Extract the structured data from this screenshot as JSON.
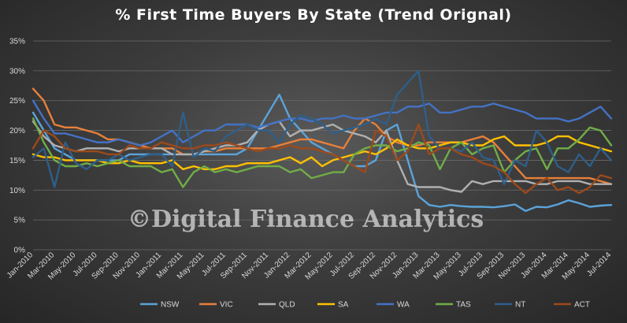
{
  "chart_data": {
    "type": "line",
    "title": "% First Time Buyers By State (Trend Orignal)",
    "watermark": "©Digital Finance Analytics",
    "y_axis": {
      "min": 0,
      "max": 35,
      "step": 5,
      "format": "percent"
    },
    "grid": true,
    "legend_position": "bottom",
    "x": [
      "Jan-2010",
      "Feb-2010",
      "Mar-2010",
      "Apr-2010",
      "May-2010",
      "Jun-2010",
      "Jul-2010",
      "Aug-2010",
      "Sep-2010",
      "Oct-2010",
      "Nov-2010",
      "Dec-2010",
      "Jan-2011",
      "Feb-2011",
      "Mar-2011",
      "Apr-2011",
      "May-2011",
      "Jun-2011",
      "Jul-2011",
      "Aug-2011",
      "Sep-2011",
      "Oct-2011",
      "Nov-2011",
      "Dec-2011",
      "Jan-2012",
      "Feb-2012",
      "Mar-2012",
      "Apr-2012",
      "May-2012",
      "Jun-2012",
      "Jul-2012",
      "Aug-2012",
      "Sep-2012",
      "Oct-2012",
      "Nov-2012",
      "Dec-2012",
      "Jan-2013",
      "Feb-2013",
      "Mar-2013",
      "Apr-2013",
      "May-2013",
      "Jun-2013",
      "Jul-2013",
      "Aug-2013",
      "Sep-2013",
      "Oct-2013",
      "Nov-2013",
      "Dec-2013",
      "Jan-2014",
      "Feb-2014",
      "Mar-2014",
      "Apr-2014",
      "May-2014",
      "Jun-2014",
      "Jul-2014"
    ],
    "x_tick_labels": [
      "Jan-2010",
      "Mar-2010",
      "May-2010",
      "Jul-2010",
      "Sep-2010",
      "Nov-2010",
      "Jan-2011",
      "Mar-2011",
      "May-2011",
      "Jul-2011",
      "Sep-2011",
      "Nov-2011",
      "Jan-2012",
      "Mar-2012",
      "May-2012",
      "Jul-2012",
      "Sep-2012",
      "Nov-2012",
      "Jan-2013",
      "Mar-2013",
      "May-2013",
      "Jul-2013",
      "Sep-2013",
      "Nov-2013",
      "Jan-2014",
      "Mar-2014",
      "May-2014",
      "Jul-2014"
    ],
    "series": [
      {
        "name": "NSW",
        "color": "#5ba3d9",
        "values": [
          23,
          20,
          17,
          16,
          15,
          15,
          15,
          15,
          15,
          16,
          16,
          16,
          16,
          16,
          16,
          16,
          16,
          16,
          16,
          16,
          17,
          20,
          23,
          26,
          22,
          20,
          18,
          17,
          16,
          15,
          14,
          14,
          15,
          20,
          21,
          15,
          9,
          7.5,
          7.2,
          7.5,
          7.3,
          7.2,
          7.2,
          7.1,
          7.3,
          7.6,
          6.5,
          7.2,
          7.1,
          7.6,
          8.3,
          7.8,
          7.2,
          7.4,
          7.5
        ]
      },
      {
        "name": "VIC",
        "color": "#e8803a",
        "values": [
          27,
          25,
          21,
          20.5,
          20.5,
          20,
          19.5,
          18.5,
          18.5,
          18,
          17.5,
          17,
          17,
          17,
          16,
          16,
          16.5,
          16.5,
          17,
          17,
          17,
          17,
          17,
          17.5,
          18,
          18.5,
          18.5,
          18,
          17.5,
          17,
          20,
          22,
          21,
          19,
          18,
          17.5,
          17.5,
          18,
          18,
          18,
          18,
          18.5,
          19,
          18,
          16,
          14,
          12,
          12,
          12,
          12,
          12,
          12,
          12,
          11.5,
          11
        ]
      },
      {
        "name": "QLD",
        "color": "#b0b0b0",
        "values": [
          21.5,
          19,
          17.5,
          17,
          16.5,
          17,
          17,
          17,
          16.5,
          17,
          17,
          17,
          17,
          16,
          16,
          16,
          16.5,
          17,
          17.5,
          17.5,
          18,
          20,
          21,
          21.5,
          19,
          20,
          20,
          20.5,
          21,
          20,
          19.5,
          19,
          18,
          20,
          15,
          11,
          10.5,
          10.5,
          10.5,
          10,
          9.7,
          11.5,
          11,
          11.5,
          11.5,
          11.5,
          11.5,
          11,
          11,
          11.5,
          11.5,
          11.5,
          11,
          11,
          11
        ]
      },
      {
        "name": "SA",
        "color": "#ffc000",
        "values": [
          16,
          15.5,
          15.5,
          15,
          15,
          15,
          15,
          14.5,
          14.5,
          15,
          14.5,
          14.5,
          14.5,
          15,
          13.5,
          14,
          13.5,
          13.5,
          14,
          14,
          14.5,
          14.5,
          14.5,
          15,
          15.5,
          14.5,
          15.5,
          14,
          15,
          15.5,
          16,
          16.5,
          16,
          17,
          18.5,
          17.5,
          17,
          17,
          17.5,
          18,
          18,
          17.5,
          17.5,
          18.5,
          19,
          17.5,
          17.5,
          17.5,
          18,
          19,
          19,
          18,
          17.5,
          17,
          16.5
        ]
      },
      {
        "name": "WA",
        "color": "#4472c4",
        "values": [
          25,
          22,
          19.5,
          19.5,
          19,
          18.5,
          18,
          18,
          18.5,
          18,
          17.5,
          18,
          19,
          20,
          18,
          19,
          20,
          20,
          21,
          21,
          21,
          20.5,
          21,
          21.5,
          22,
          22,
          21.5,
          22,
          22,
          22.5,
          22,
          22,
          22.5,
          23,
          23,
          24,
          24,
          24.5,
          23,
          23,
          23.5,
          24,
          24,
          24.5,
          24,
          23.5,
          23,
          22,
          22,
          22,
          21.5,
          22,
          23,
          24,
          22
        ]
      },
      {
        "name": "TAS",
        "color": "#70ad47",
        "values": [
          22,
          18,
          15,
          14,
          14,
          14.5,
          14,
          14.5,
          15,
          14,
          14,
          14,
          13,
          13.5,
          10.5,
          13,
          14,
          13,
          13.5,
          13,
          13.5,
          14,
          14,
          14,
          13,
          13.5,
          12,
          12.5,
          13,
          13,
          16,
          17,
          17.5,
          17.5,
          16.5,
          17,
          18,
          17.5,
          13.5,
          17,
          18,
          16,
          17,
          17.5,
          13,
          15,
          16.5,
          17,
          13.5,
          17,
          17,
          18.5,
          20.5,
          20,
          17.5
        ]
      },
      {
        "name": "NT",
        "color": "#2e5f8a",
        "values": [
          15.5,
          17,
          10.5,
          18,
          14.5,
          13.5,
          15,
          15,
          16,
          15,
          15.5,
          16,
          16,
          14,
          23,
          15.5,
          17,
          16.5,
          19,
          20,
          21,
          20,
          20,
          18,
          21,
          22.5,
          22,
          21,
          19.5,
          20,
          20.5,
          21,
          22,
          21,
          26,
          28,
          30,
          19,
          17,
          17,
          16.5,
          18,
          15.5,
          15,
          11,
          15,
          14,
          20,
          18,
          14,
          13,
          16,
          14,
          17,
          15
        ]
      },
      {
        "name": "ACT",
        "color": "#9c4a1b",
        "values": [
          17,
          20,
          19,
          17,
          16.5,
          16.5,
          16.5,
          16,
          16,
          17.5,
          17,
          17,
          18,
          17.5,
          17,
          17,
          17.5,
          17.5,
          18,
          17.5,
          17,
          16.5,
          17,
          17,
          17.5,
          17,
          17,
          16.5,
          16,
          15,
          14,
          13,
          20,
          19,
          15,
          16.5,
          21,
          16,
          17,
          17,
          16,
          15.5,
          14.5,
          14,
          13,
          11,
          9.5,
          11,
          12,
          10,
          10.5,
          9.5,
          10.5,
          12.5,
          12
        ]
      }
    ]
  }
}
